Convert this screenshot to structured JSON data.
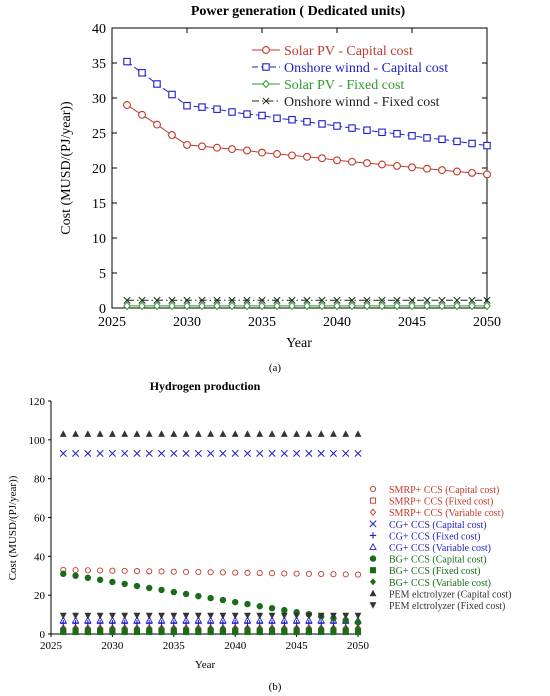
{
  "chart_data": [
    {
      "type": "line",
      "panel_label": "(a)",
      "title": "Power generation ( Dedicated units)",
      "xlabel": "Year",
      "ylabel": "Cost (MUSD/(PJ/year))",
      "xlim": [
        2025,
        2050
      ],
      "ylim": [
        0,
        40
      ],
      "xticks": [
        2025,
        2030,
        2035,
        2040,
        2045,
        2050
      ],
      "yticks": [
        0,
        5,
        10,
        15,
        20,
        25,
        30,
        35,
        40
      ],
      "grid": false,
      "legend_position": "top-right",
      "x": [
        2026,
        2027,
        2028,
        2029,
        2030,
        2031,
        2032,
        2033,
        2034,
        2035,
        2036,
        2037,
        2038,
        2039,
        2040,
        2041,
        2042,
        2043,
        2044,
        2045,
        2046,
        2047,
        2048,
        2049,
        2050
      ],
      "series": [
        {
          "name": "Solar PV - Capital cost",
          "color": "#c0392b",
          "marker": "circle",
          "dash": "solid",
          "values": [
            29.0,
            27.6,
            26.2,
            24.7,
            23.3,
            23.1,
            22.9,
            22.7,
            22.5,
            22.2,
            22.0,
            21.8,
            21.6,
            21.4,
            21.1,
            20.9,
            20.7,
            20.5,
            20.3,
            20.1,
            19.9,
            19.7,
            19.5,
            19.3,
            19.1
          ]
        },
        {
          "name": "Onshore winnd -  Capital cost",
          "color": "#1f1fc8",
          "marker": "square",
          "dash": "dashed",
          "values": [
            35.2,
            33.6,
            32.0,
            30.5,
            28.9,
            28.7,
            28.4,
            28.0,
            27.7,
            27.5,
            27.1,
            26.9,
            26.6,
            26.3,
            26.0,
            25.7,
            25.4,
            25.1,
            24.9,
            24.6,
            24.3,
            24.1,
            23.8,
            23.5,
            23.2
          ]
        },
        {
          "name": "Solar PV - Fixed cost",
          "color": "#2e9a2e",
          "marker": "diamond",
          "dash": "solid",
          "values": [
            0.3,
            0.3,
            0.3,
            0.3,
            0.3,
            0.3,
            0.3,
            0.3,
            0.3,
            0.3,
            0.3,
            0.3,
            0.3,
            0.3,
            0.3,
            0.3,
            0.3,
            0.3,
            0.3,
            0.3,
            0.3,
            0.3,
            0.3,
            0.3,
            0.3
          ]
        },
        {
          "name": "Onshore winnd -  Fixed cost",
          "color": "#222222",
          "marker": "x",
          "dash": "dashdot",
          "values": [
            1.1,
            1.1,
            1.1,
            1.1,
            1.1,
            1.1,
            1.1,
            1.1,
            1.1,
            1.1,
            1.1,
            1.1,
            1.1,
            1.1,
            1.1,
            1.1,
            1.1,
            1.1,
            1.1,
            1.1,
            1.1,
            1.1,
            1.1,
            1.1,
            1.1
          ]
        }
      ]
    },
    {
      "type": "scatter",
      "panel_label": "(b)",
      "title": "Hydrogen production",
      "xlabel": "Year",
      "ylabel": "Cost (MUSD/(PJ/year))",
      "xlim": [
        2025,
        2050
      ],
      "ylim": [
        0,
        120
      ],
      "xticks": [
        2025,
        2030,
        2035,
        2040,
        2045,
        2050
      ],
      "yticks": [
        0,
        20,
        40,
        60,
        80,
        100,
        120
      ],
      "grid": false,
      "legend_position": "right",
      "x": [
        2026,
        2027,
        2028,
        2029,
        2030,
        2031,
        2032,
        2033,
        2034,
        2035,
        2036,
        2037,
        2038,
        2039,
        2040,
        2041,
        2042,
        2043,
        2044,
        2045,
        2046,
        2047,
        2048,
        2049,
        2050
      ],
      "series": [
        {
          "name": "SMRP+ CCS (Capital cost)",
          "color": "#c0392b",
          "marker": "circle-open",
          "values": [
            33.0,
            32.9,
            32.8,
            32.7,
            32.6,
            32.5,
            32.4,
            32.3,
            32.2,
            32.1,
            32.0,
            31.9,
            31.8,
            31.7,
            31.6,
            31.5,
            31.4,
            31.3,
            31.2,
            31.1,
            31.0,
            30.9,
            30.8,
            30.7,
            30.6
          ]
        },
        {
          "name": "SMRP+ CCS (Fixed cost)",
          "color": "#c0392b",
          "marker": "square-open",
          "values": [
            1.5,
            1.5,
            1.5,
            1.5,
            1.5,
            1.5,
            1.5,
            1.5,
            1.5,
            1.5,
            1.5,
            1.5,
            1.5,
            1.5,
            1.5,
            1.5,
            1.5,
            1.5,
            1.5,
            1.5,
            1.5,
            1.5,
            1.5,
            1.5,
            1.5
          ]
        },
        {
          "name": "SMRP+ CCS (Variable cost)",
          "color": "#c0392b",
          "marker": "diamond-open",
          "values": [
            3.0,
            3.0,
            3.0,
            3.0,
            3.0,
            3.0,
            3.0,
            3.0,
            3.0,
            3.0,
            3.0,
            3.0,
            3.0,
            3.0,
            3.0,
            3.0,
            3.0,
            3.0,
            3.0,
            3.0,
            3.0,
            3.0,
            3.0,
            3.0,
            3.0
          ]
        },
        {
          "name": "CG+ CCS (Capital cost)",
          "color": "#1f1fc8",
          "marker": "x",
          "values": [
            93,
            93,
            93,
            93,
            93,
            93,
            93,
            93,
            93,
            93,
            93,
            93,
            93,
            93,
            93,
            93,
            93,
            93,
            93,
            93,
            93,
            93,
            93,
            93,
            93
          ]
        },
        {
          "name": "CG+ CCS (Fixed cost)",
          "color": "#1f1fc8",
          "marker": "plus",
          "values": [
            5.5,
            5.5,
            5.5,
            5.5,
            5.5,
            5.5,
            5.5,
            5.5,
            5.5,
            5.5,
            5.5,
            5.5,
            5.5,
            5.5,
            5.5,
            5.5,
            5.5,
            5.5,
            5.5,
            5.5,
            5.5,
            5.5,
            5.5,
            5.5,
            5.5
          ]
        },
        {
          "name": "CG+ CCS (Variable cost)",
          "color": "#1f1fc8",
          "marker": "triangle-open",
          "values": [
            7.0,
            7.0,
            7.0,
            7.0,
            7.0,
            7.0,
            7.0,
            7.0,
            7.0,
            7.0,
            7.0,
            7.0,
            7.0,
            7.0,
            7.0,
            7.0,
            7.0,
            7.0,
            7.0,
            7.0,
            7.0,
            7.0,
            7.0,
            7.0,
            7.0
          ]
        },
        {
          "name": "BG+ CCS (Capital cost)",
          "color": "#1a6b1a",
          "marker": "circle-filled",
          "values": [
            31.0,
            30.0,
            28.9,
            27.9,
            26.8,
            25.8,
            24.7,
            23.7,
            22.7,
            21.6,
            20.6,
            19.5,
            18.5,
            17.5,
            16.4,
            15.4,
            14.3,
            13.3,
            12.3,
            11.2,
            10.2,
            9.1,
            8.1,
            7.1,
            6.0
          ]
        },
        {
          "name": "BG+ CCS (Fixed cost)",
          "color": "#1a6b1a",
          "marker": "square-filled",
          "values": [
            1.0,
            1.0,
            1.0,
            1.0,
            1.0,
            1.0,
            1.0,
            1.0,
            1.0,
            1.0,
            1.0,
            1.0,
            1.0,
            1.0,
            1.0,
            1.0,
            1.0,
            1.0,
            1.0,
            1.0,
            1.0,
            1.0,
            1.0,
            1.0,
            1.0
          ]
        },
        {
          "name": "BG+ CCS (Variable cost)",
          "color": "#1a6b1a",
          "marker": "diamond-filled",
          "values": [
            2.5,
            2.5,
            2.5,
            2.5,
            2.5,
            2.5,
            2.5,
            2.5,
            2.5,
            2.5,
            2.5,
            2.5,
            2.5,
            2.5,
            2.5,
            2.5,
            2.5,
            2.5,
            2.5,
            2.5,
            2.5,
            2.5,
            2.5,
            2.5,
            2.5
          ]
        },
        {
          "name": "PEM elctrolyzer (Capital cost)",
          "color": "#333333",
          "marker": "triangle-up-filled",
          "values": [
            103,
            103,
            103,
            103,
            103,
            103,
            103,
            103,
            103,
            103,
            103,
            103,
            103,
            103,
            103,
            103,
            103,
            103,
            103,
            103,
            103,
            103,
            103,
            103,
            103
          ]
        },
        {
          "name": "PEM elctrolyzer (Fixed cost)",
          "color": "#333333",
          "marker": "triangle-down-filled",
          "values": [
            9.5,
            9.5,
            9.5,
            9.5,
            9.5,
            9.5,
            9.5,
            9.5,
            9.5,
            9.5,
            9.5,
            9.5,
            9.5,
            9.5,
            9.5,
            9.5,
            9.5,
            9.5,
            9.5,
            9.5,
            9.5,
            9.5,
            9.5,
            9.5,
            9.5
          ]
        }
      ]
    }
  ]
}
